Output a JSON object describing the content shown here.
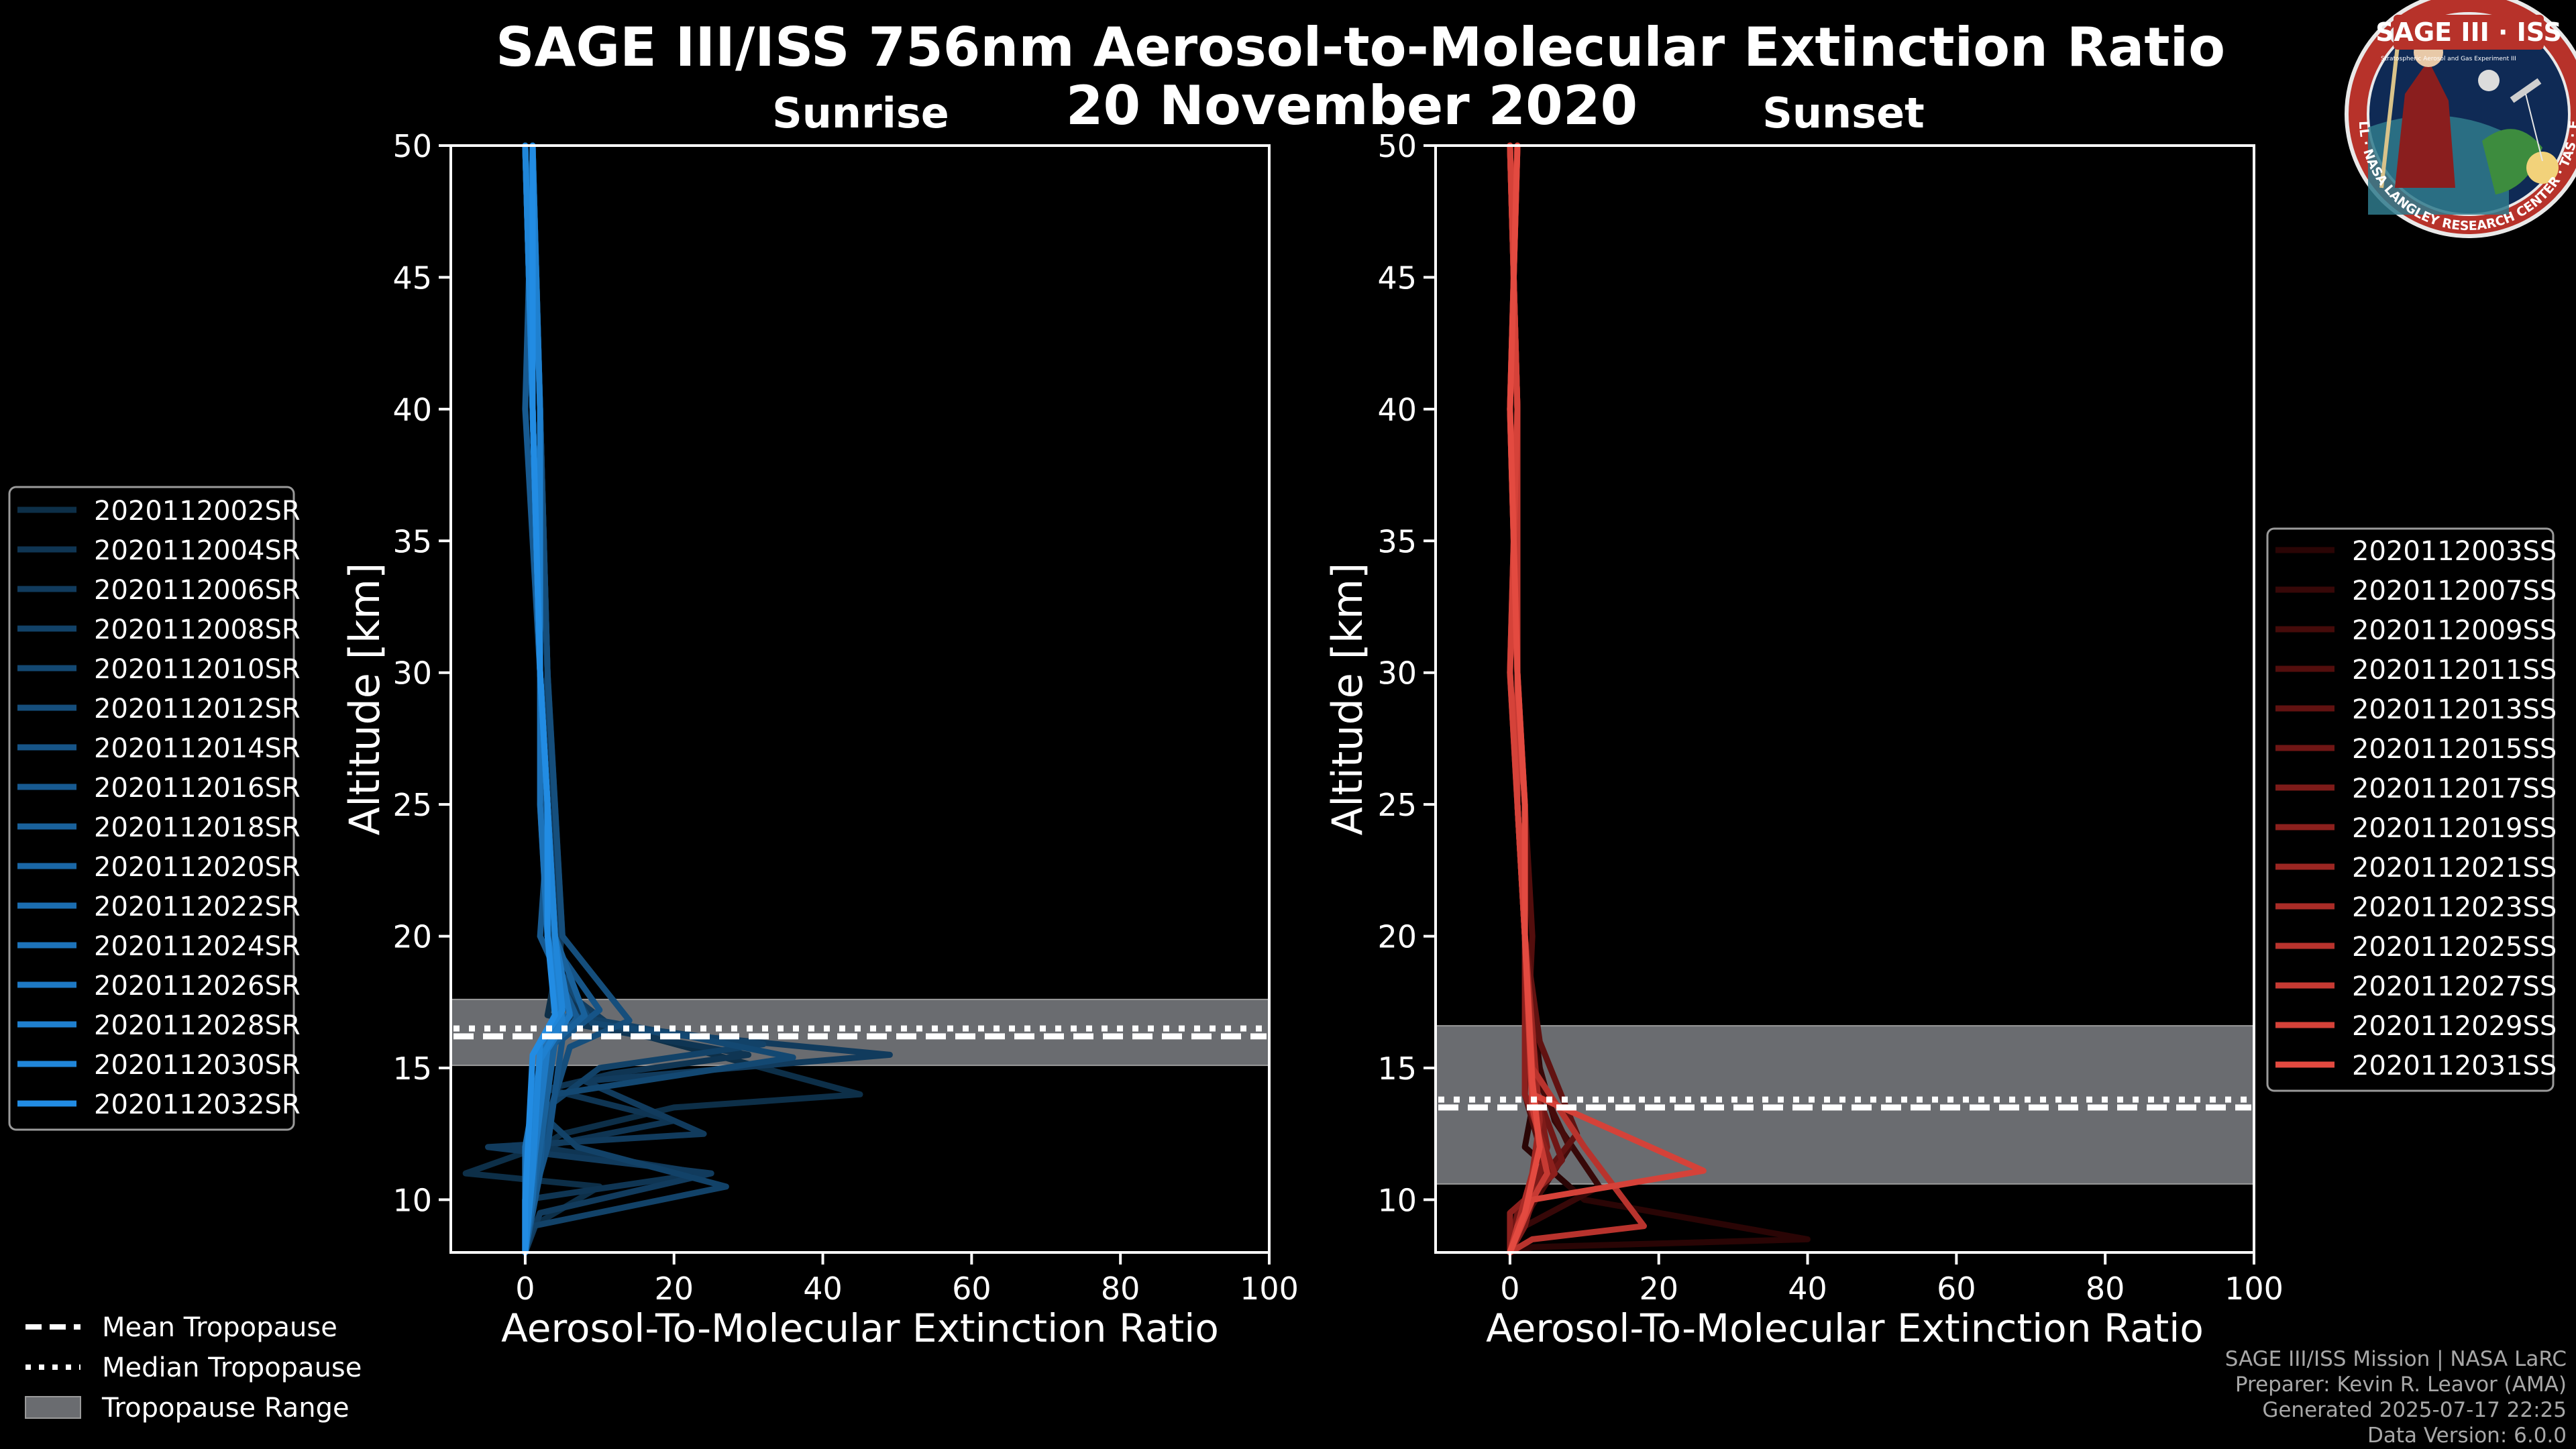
{
  "figure": {
    "title": "SAGE III/ISS 756nm Aerosol-to-Molecular Extinction Ratio",
    "date": "20 November 2020",
    "logo": {
      "title": "SAGE III · ISS",
      "subtitle": "Stratospheric Aerosol and Gas Experiment III",
      "ring_text": "BALL · NASA LANGLEY RESEARCH CENTER · TAS · ESA"
    },
    "footer": [
      "SAGE III/ISS Mission | NASA LaRC",
      "Preparer: Kevin R. Leavor (AMA)",
      "Generated 2025-07-17 22:25",
      "Data Version: 6.0.0"
    ],
    "bottom_legend": [
      "Mean Tropopause",
      "Median Tropopause",
      "Tropopause Range"
    ],
    "colors": {
      "background": "#000000",
      "sunrise": "#1a8fd6",
      "sunset": "#e8503c",
      "tropopause_fill": "#6a6c70"
    }
  },
  "chart_data": [
    {
      "type": "line",
      "id": "sunrise",
      "title": "Sunrise",
      "xlabel": "Aerosol-To-Molecular Extinction Ratio",
      "ylabel": "Altitude [km]",
      "xlim": [
        -10,
        100
      ],
      "ylim": [
        8,
        50
      ],
      "xticks": [
        0,
        20,
        40,
        60,
        80,
        100
      ],
      "yticks": [
        10,
        15,
        20,
        25,
        30,
        35,
        40,
        45,
        50
      ],
      "tropopause": {
        "min": 15.1,
        "max": 17.6,
        "mean": 16.2,
        "median": 16.5
      },
      "legend": [
        "2020112002SR",
        "2020112004SR",
        "2020112006SR",
        "2020112008SR",
        "2020112010SR",
        "2020112012SR",
        "2020112014SR",
        "2020112016SR",
        "2020112018SR",
        "2020112020SR",
        "2020112022SR",
        "2020112024SR",
        "2020112026SR",
        "2020112028SR",
        "2020112030SR",
        "2020112032SR"
      ],
      "series": [
        {
          "name": "2020112002SR",
          "color": "#0d2f48",
          "x": [
            1,
            2,
            3,
            4,
            5,
            3,
            15,
            45,
            20,
            5,
            2,
            -8,
            10,
            1,
            0
          ],
          "y": [
            50,
            40,
            30,
            25,
            20,
            17,
            16.3,
            14,
            13.5,
            12.5,
            12,
            11,
            10.5,
            9,
            8
          ]
        },
        {
          "name": "2020112004SR",
          "color": "#0f3553",
          "x": [
            1,
            2,
            3,
            3,
            4,
            8,
            30,
            12,
            3,
            20,
            2,
            24,
            0,
            0
          ],
          "y": [
            50,
            40,
            30,
            25,
            19,
            16.6,
            15.5,
            14.8,
            14.2,
            13,
            12,
            11,
            10,
            8
          ]
        },
        {
          "name": "2020112006SR",
          "color": "#113b5d",
          "x": [
            1,
            2,
            3,
            4,
            5,
            12,
            49,
            28,
            8,
            24,
            -5,
            25,
            2,
            0
          ],
          "y": [
            50,
            40,
            30,
            24,
            18,
            16.5,
            15.5,
            15,
            14.5,
            12.5,
            12,
            11,
            9.5,
            8
          ]
        },
        {
          "name": "2020112008SR",
          "color": "#124268",
          "x": [
            1,
            2,
            3,
            2,
            3,
            6,
            18,
            32,
            10,
            2,
            7,
            27,
            1,
            0
          ],
          "y": [
            50,
            40,
            30,
            25,
            20,
            17,
            16.4,
            15.9,
            15,
            13.3,
            12,
            10.5,
            9,
            8
          ]
        },
        {
          "name": "2020112010SR",
          "color": "#134872",
          "x": [
            0,
            1,
            2,
            3,
            4,
            9,
            22,
            36,
            4,
            0,
            0
          ],
          "y": [
            50,
            40,
            30,
            24,
            19,
            16.7,
            16.2,
            15.4,
            14,
            10,
            8
          ]
        },
        {
          "name": "2020112012SR",
          "color": "#154e7c",
          "x": [
            1,
            2,
            3,
            4,
            5,
            14,
            6,
            3,
            1,
            0
          ],
          "y": [
            50,
            40,
            30,
            25,
            20,
            16.8,
            15.8,
            13,
            10,
            8
          ]
        },
        {
          "name": "2020112014SR",
          "color": "#165487",
          "x": [
            0,
            1,
            2,
            3,
            3,
            10,
            5,
            3,
            1,
            0
          ],
          "y": [
            50,
            40,
            30,
            25,
            20,
            17.2,
            16.1,
            12,
            10,
            8
          ]
        },
        {
          "name": "2020112016SR",
          "color": "#175a91",
          "x": [
            1,
            0,
            2,
            3,
            2,
            7,
            3,
            2,
            0
          ],
          "y": [
            50,
            40,
            30,
            24,
            20,
            16.9,
            15.6,
            11,
            8
          ]
        },
        {
          "name": "2020112018SR",
          "color": "#19619b",
          "x": [
            0,
            1,
            2,
            3,
            4,
            8,
            4,
            2,
            0
          ],
          "y": [
            50,
            40,
            30,
            25,
            20,
            17,
            16,
            12,
            8
          ]
        },
        {
          "name": "2020112020SR",
          "color": "#1a67a6",
          "x": [
            1,
            1,
            2,
            3,
            3,
            6,
            2,
            1,
            0
          ],
          "y": [
            50,
            40,
            30,
            25,
            20,
            17.1,
            15.5,
            11,
            8
          ]
        },
        {
          "name": "2020112022SR",
          "color": "#1b6db0",
          "x": [
            0,
            1,
            2,
            3,
            4,
            5,
            2,
            1,
            0
          ],
          "y": [
            50,
            40,
            30,
            25,
            20,
            16.9,
            15.4,
            10,
            8
          ]
        },
        {
          "name": "2020112024SR",
          "color": "#1d73ba",
          "x": [
            1,
            1,
            2,
            2,
            3,
            5,
            2,
            0,
            0
          ],
          "y": [
            50,
            40,
            30,
            25,
            20,
            17.3,
            15.2,
            12,
            8
          ]
        },
        {
          "name": "2020112026SR",
          "color": "#1e79c4",
          "x": [
            0,
            1,
            2,
            3,
            4,
            6,
            3,
            1,
            0
          ],
          "y": [
            50,
            40,
            30,
            25,
            20,
            17,
            15.7,
            11,
            8
          ]
        },
        {
          "name": "2020112028SR",
          "color": "#1f80cf",
          "x": [
            1,
            2,
            2,
            3,
            3,
            5,
            2,
            0,
            0
          ],
          "y": [
            50,
            40,
            30,
            25,
            20,
            16.8,
            15.3,
            10,
            8
          ]
        },
        {
          "name": "2020112030SR",
          "color": "#2086d9",
          "x": [
            0,
            1,
            2,
            3,
            4,
            5,
            2,
            1,
            0
          ],
          "y": [
            50,
            40,
            30,
            25,
            20,
            17.2,
            15.9,
            11,
            8
          ]
        },
        {
          "name": "2020112032SR",
          "color": "#228ce3",
          "x": [
            1,
            1,
            2,
            3,
            3,
            4,
            1,
            0,
            0
          ],
          "y": [
            50,
            40,
            30,
            25,
            20,
            17,
            15.5,
            10,
            8
          ]
        }
      ]
    },
    {
      "type": "line",
      "id": "sunset",
      "title": "Sunset",
      "xlabel": "Aerosol-To-Molecular Extinction Ratio",
      "ylabel": "Altitude [km]",
      "xlim": [
        -10,
        100
      ],
      "ylim": [
        8,
        50
      ],
      "xticks": [
        0,
        20,
        40,
        60,
        80,
        100
      ],
      "yticks": [
        10,
        15,
        20,
        25,
        30,
        35,
        40,
        45,
        50
      ],
      "tropopause": {
        "min": 10.6,
        "max": 16.6,
        "mean": 13.5,
        "median": 13.8
      },
      "legend": [
        "2020112003SS",
        "2020112007SS",
        "2020112009SS",
        "2020112011SS",
        "2020112013SS",
        "2020112015SS",
        "2020112017SS",
        "2020112019SS",
        "2020112021SS",
        "2020112023SS",
        "2020112025SS",
        "2020112027SS",
        "2020112029SS",
        "2020112031SS"
      ],
      "series": [
        {
          "name": "2020112003SS",
          "color": "#2a0505",
          "x": [
            0,
            1,
            1,
            2,
            2,
            4,
            2,
            10,
            40,
            3,
            0
          ],
          "y": [
            50,
            40,
            30,
            25,
            20,
            15,
            12,
            10,
            8.5,
            8.2,
            8
          ]
        },
        {
          "name": "2020112007SS",
          "color": "#370808",
          "x": [
            0,
            1,
            0,
            1,
            2,
            3,
            6,
            12,
            2,
            0
          ],
          "y": [
            50,
            40,
            30,
            25,
            20,
            16,
            13,
            10.5,
            9,
            8
          ]
        },
        {
          "name": "2020112009SS",
          "color": "#450b0a",
          "x": [
            1,
            0,
            1,
            1,
            2,
            3,
            8,
            3,
            0
          ],
          "y": [
            50,
            40,
            30,
            25,
            20,
            15,
            12,
            9.8,
            8
          ]
        },
        {
          "name": "2020112011SS",
          "color": "#530e0d",
          "x": [
            0,
            1,
            1,
            2,
            3,
            2,
            5,
            1,
            0
          ],
          "y": [
            50,
            40,
            30,
            25,
            20,
            14,
            11,
            9,
            8
          ]
        },
        {
          "name": "2020112013SS",
          "color": "#611211",
          "x": [
            0,
            1,
            0,
            1,
            2,
            4,
            9,
            2,
            0
          ],
          "y": [
            50,
            40,
            30,
            25,
            20,
            16,
            12.5,
            10,
            8
          ]
        },
        {
          "name": "2020112015SS",
          "color": "#701615",
          "x": [
            1,
            0,
            1,
            2,
            2,
            3,
            7,
            1,
            0
          ],
          "y": [
            50,
            40,
            30,
            25,
            20,
            14.5,
            11.5,
            9.5,
            8
          ]
        },
        {
          "name": "2020112017SS",
          "color": "#7e1b19",
          "x": [
            0,
            1,
            1,
            1,
            2,
            3,
            5,
            2,
            0
          ],
          "y": [
            50,
            40,
            30,
            25,
            20,
            15,
            12,
            9,
            8
          ]
        },
        {
          "name": "2020112019SS",
          "color": "#8c201d",
          "x": [
            0,
            1,
            0,
            1,
            2,
            2,
            6,
            0,
            0
          ],
          "y": [
            50,
            40,
            30,
            25,
            20,
            14,
            11,
            9.5,
            8
          ]
        },
        {
          "name": "2020112021SS",
          "color": "#9b2622",
          "x": [
            1,
            0,
            1,
            1,
            2,
            4,
            3,
            1,
            0
          ],
          "y": [
            50,
            40,
            30,
            25,
            20,
            13,
            11,
            9,
            8
          ]
        },
        {
          "name": "2020112023SS",
          "color": "#a92c27",
          "x": [
            0,
            1,
            1,
            2,
            2,
            3,
            4,
            2,
            0
          ],
          "y": [
            50,
            40,
            30,
            25,
            20,
            14,
            12,
            10,
            8
          ]
        },
        {
          "name": "2020112025SS",
          "color": "#b8332d",
          "x": [
            1,
            0,
            1,
            1,
            2,
            3,
            10,
            18,
            3,
            0
          ],
          "y": [
            50,
            40,
            30,
            25,
            20,
            15,
            12,
            9,
            8.5,
            8
          ]
        },
        {
          "name": "2020112027SS",
          "color": "#c63a33",
          "x": [
            0,
            1,
            1,
            1,
            2,
            3,
            5,
            1,
            0
          ],
          "y": [
            50,
            40,
            30,
            25,
            20,
            13.5,
            11,
            9,
            8
          ]
        },
        {
          "name": "2020112029SS",
          "color": "#d54239",
          "x": [
            0,
            1,
            0,
            1,
            2,
            3,
            26,
            3,
            0
          ],
          "y": [
            50,
            40,
            30,
            25,
            20,
            14,
            11.1,
            10,
            8
          ]
        },
        {
          "name": "2020112031SS",
          "color": "#e34a40",
          "x": [
            1,
            0,
            1,
            2,
            2,
            3,
            4,
            2,
            0
          ],
          "y": [
            50,
            40,
            30,
            25,
            20,
            14.5,
            12,
            9.5,
            8
          ]
        }
      ]
    }
  ]
}
